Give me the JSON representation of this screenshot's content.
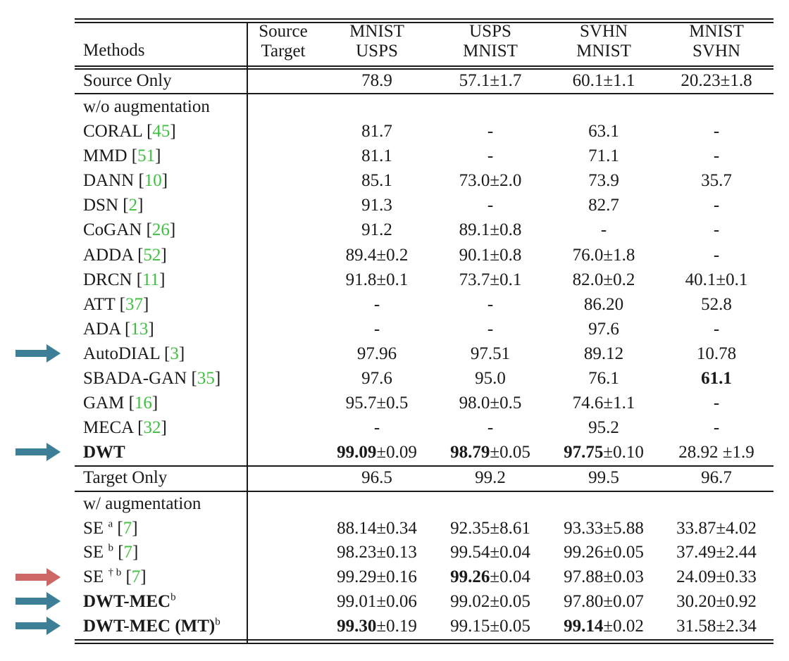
{
  "header": {
    "methods": "Methods",
    "source_label": "Source",
    "target_label": "Target",
    "columns": [
      {
        "source": "MNIST",
        "target": "USPS"
      },
      {
        "source": "USPS",
        "target": "MNIST"
      },
      {
        "source": "SVHN",
        "target": "MNIST"
      },
      {
        "source": "MNIST",
        "target": "SVHN"
      }
    ]
  },
  "source_only": {
    "name": "Source Only",
    "values": [
      "78.9",
      "57.1±1.7",
      "60.1±1.1",
      "20.23±1.8"
    ]
  },
  "wo_aug": {
    "section": "w/o augmentation",
    "rows": [
      {
        "name": "CORAL",
        "cite": "45",
        "values": [
          "81.7",
          "-",
          "63.1",
          "-"
        ]
      },
      {
        "name": "MMD",
        "cite": "51",
        "values": [
          "81.1",
          "-",
          "71.1",
          "-"
        ]
      },
      {
        "name": "DANN",
        "cite": "10",
        "values": [
          "85.1",
          "73.0±2.0",
          "73.9",
          "35.7"
        ]
      },
      {
        "name": "DSN",
        "cite": "2",
        "values": [
          "91.3",
          "-",
          "82.7",
          "-"
        ]
      },
      {
        "name": "CoGAN",
        "cite": "26",
        "values": [
          "91.2",
          "89.1±0.8",
          "-",
          "-"
        ]
      },
      {
        "name": "ADDA",
        "cite": "52",
        "values": [
          "89.4±0.2",
          "90.1±0.8",
          "76.0±1.8",
          "-"
        ]
      },
      {
        "name": "DRCN",
        "cite": "11",
        "values": [
          "91.8±0.1",
          "73.7±0.1",
          "82.0±0.2",
          "40.1±0.1"
        ]
      },
      {
        "name": "ATT",
        "cite": "37",
        "values": [
          "-",
          "-",
          "86.20",
          "52.8"
        ]
      },
      {
        "name": "ADA",
        "cite": "13",
        "values": [
          "-",
          "-",
          "97.6",
          "-"
        ]
      },
      {
        "name": "AutoDIAL",
        "cite": "3",
        "values": [
          "97.96",
          "97.51",
          "89.12",
          "10.78"
        ]
      },
      {
        "name": "SBADA-GAN",
        "cite": "35",
        "values": [
          "97.6",
          "95.0",
          "76.1",
          "61.1"
        ]
      },
      {
        "name": "GAM",
        "cite": "16",
        "values": [
          "95.7±0.5",
          "98.0±0.5",
          "74.6±1.1",
          "-"
        ]
      },
      {
        "name": "MECA",
        "cite": "32",
        "values": [
          "-",
          "-",
          "95.2",
          "-"
        ]
      }
    ]
  },
  "dwt": {
    "name": "DWT",
    "bold_parts": [
      "99.09",
      "98.79",
      "97.75"
    ],
    "rest_parts": [
      "±0.09",
      "±0.05",
      "±0.10"
    ],
    "last": "28.92 ±1.9"
  },
  "target_only": {
    "name": "Target Only",
    "values": [
      "96.5",
      "99.2",
      "99.5",
      "96.7"
    ]
  },
  "w_aug": {
    "section": "w/ augmentation",
    "se_a": {
      "name": "SE",
      "sup": "a",
      "cite": "7",
      "values": [
        "88.14±0.34",
        "92.35±8.61",
        "93.33±5.88",
        "33.87±4.02"
      ]
    },
    "se_b": {
      "name": "SE",
      "sup": "b",
      "cite": "7",
      "values": [
        "98.23±0.13",
        "99.54±0.04",
        "99.26±0.05",
        "37.49±2.44"
      ]
    },
    "se_db": {
      "name": "SE",
      "sup": "† b",
      "cite": "7",
      "v1": "99.29±0.16",
      "v2_bold": "99.26",
      "v2_rest": "±0.04",
      "v3": "97.88±0.03",
      "v4": "24.09±0.33"
    },
    "dwt_mec": {
      "name": "DWT-MEC",
      "sup": "b",
      "values": [
        "99.01±0.06",
        "99.02±0.05",
        "97.80±0.07",
        "30.20±0.92"
      ]
    },
    "dwt_mec_mt": {
      "name": "DWT-MEC (MT)",
      "sup": "b",
      "v1_bold": "99.30",
      "v1_rest": "±0.19",
      "v2": "99.15±0.05",
      "v3_bold": "99.14",
      "v3_rest": "±0.02",
      "v4": "31.58±2.34"
    }
  },
  "arrow_colors": {
    "blue": "#3d7f96",
    "red": "#cd6766"
  }
}
